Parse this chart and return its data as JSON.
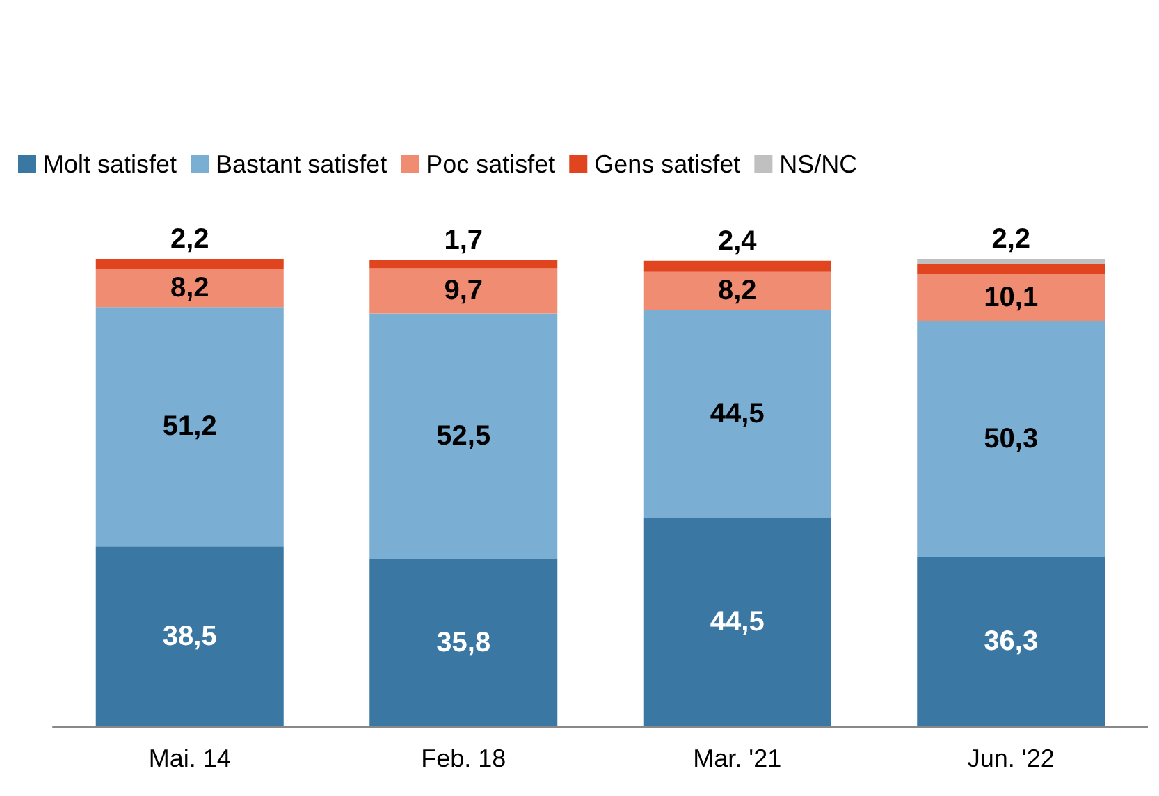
{
  "chart_data": {
    "type": "bar",
    "stacked": true,
    "categories": [
      "Mai. 14",
      "Feb. 18",
      "Mar. '21",
      "Jun. '22"
    ],
    "ylim": [
      0,
      100
    ],
    "tick_labels": "x",
    "legend": "top",
    "grid": false,
    "series": [
      {
        "name": "Molt satisfet",
        "color": "#3a77a3",
        "values": [
          38.5,
          35.8,
          44.5,
          36.3
        ],
        "value_labels": [
          "38,5",
          "35,8",
          "44,5",
          "36,3"
        ]
      },
      {
        "name": "Bastant satisfet",
        "color": "#7aaed3",
        "values": [
          51.2,
          52.5,
          44.5,
          50.3
        ],
        "value_labels": [
          "51,2",
          "52,5",
          "44,5",
          "50,3"
        ]
      },
      {
        "name": "Poc satisfet",
        "color": "#f08c72",
        "values": [
          8.2,
          9.7,
          8.2,
          10.1
        ],
        "value_labels": [
          "8,2",
          "9,7",
          "8,2",
          "10,1"
        ]
      },
      {
        "name": "Gens satisfet",
        "color": "#e0451f",
        "values": [
          2.2,
          1.7,
          2.4,
          2.2
        ],
        "value_labels": [
          "2,2",
          "1,7",
          "2,4",
          "2,2"
        ]
      },
      {
        "name": "NS/NC",
        "color": "#c0c0c0",
        "values": [
          null,
          null,
          null,
          1.1
        ],
        "value_labels": [
          null,
          null,
          null,
          null
        ]
      }
    ]
  }
}
